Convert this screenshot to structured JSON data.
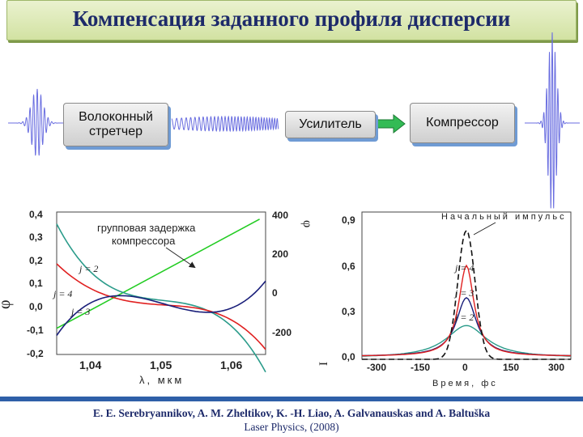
{
  "title": "Компенсация заданного профиля дисперсии",
  "blocks": {
    "stretcher": "Волоконный стретчер",
    "amplifier": "Усилитель",
    "compressor": "Компрессор"
  },
  "left_plot": {
    "left_ticks": [
      "0,4",
      "0,3",
      "0,2",
      "0,1",
      "0,0",
      "-0,1",
      "-0,2"
    ],
    "right_ticks": [
      "400",
      "200",
      "0",
      "-200"
    ],
    "x_ticks": [
      "1,04",
      "1,05",
      "1,06"
    ],
    "xlabel": "λ, мкм",
    "ylabel": "φ",
    "ylabel_frag": "φ",
    "annotation": "групповая задержка компрессора",
    "curve_labels": [
      "j = 2",
      "j = 4",
      "j = 3"
    ]
  },
  "right_plot": {
    "y_ticks": [
      "0,9",
      "0,6",
      "0,3",
      "0,0"
    ],
    "x_ticks": [
      "-300",
      "-150",
      "0",
      "150",
      "300"
    ],
    "xlabel": "Время, фс",
    "ylabel_frag": "I",
    "annotation": "Начальный импульс",
    "curve_labels": [
      "j = 4",
      "j = 3",
      "j = 2"
    ]
  },
  "citation": {
    "line1": "E. E. Serebryannikov, A. M. Zheltikov, K. -H. Liao, A. Galvanauskas and A. Baltuška",
    "line2": "Laser Physics, (2008)"
  },
  "colors": {
    "green": "#22cc22",
    "teal": "#2a9b8a",
    "red": "#e02020",
    "navy": "#1a1f7a",
    "pulse": "#6a6ee0",
    "arrow": "#33bb55"
  }
}
